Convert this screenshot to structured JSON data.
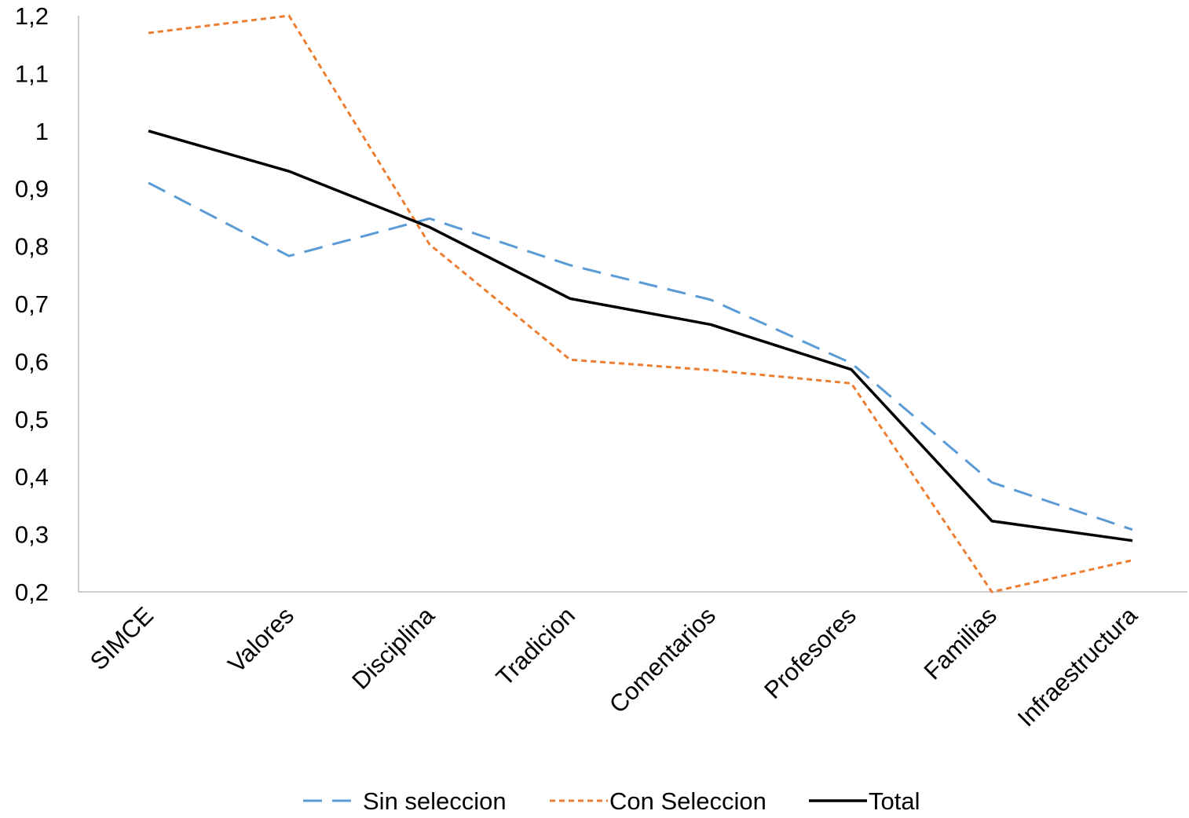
{
  "chart_data": {
    "type": "line",
    "title": "",
    "xlabel": "",
    "ylabel": "",
    "categories": [
      "SIMCE",
      "Valores",
      "Disciplina",
      "Tradicion",
      "Comentarios",
      "Profesores",
      "Familias",
      "Infraestructura"
    ],
    "ylim": [
      0.2,
      1.2
    ],
    "yticks": [
      {
        "value": 1.2,
        "label": "1,2"
      },
      {
        "value": 1.1,
        "label": "1,1"
      },
      {
        "value": 1.0,
        "label": "1"
      },
      {
        "value": 0.9,
        "label": "0,9"
      },
      {
        "value": 0.8,
        "label": "0,8"
      },
      {
        "value": 0.7,
        "label": "0,7"
      },
      {
        "value": 0.6,
        "label": "0,6"
      },
      {
        "value": 0.5,
        "label": "0,5"
      },
      {
        "value": 0.4,
        "label": "0,4"
      },
      {
        "value": 0.3,
        "label": "0,3"
      },
      {
        "value": 0.2,
        "label": "0,2"
      }
    ],
    "grid": false,
    "legend_position": "bottom",
    "series": [
      {
        "name": "Sin seleccion",
        "color": "#5B9BD5",
        "dash": "long-dash",
        "values": [
          0.91,
          0.783,
          0.848,
          0.767,
          0.707,
          0.597,
          0.39,
          0.308
        ]
      },
      {
        "name": "Con Seleccion",
        "color": "#ED7D31",
        "dash": "short-dash",
        "values": [
          1.17,
          1.2,
          0.803,
          0.603,
          0.585,
          0.562,
          0.2,
          0.255
        ]
      },
      {
        "name": "Total",
        "color": "#000000",
        "dash": "solid",
        "values": [
          1.0,
          0.93,
          0.833,
          0.709,
          0.664,
          0.586,
          0.323,
          0.289
        ]
      }
    ]
  }
}
